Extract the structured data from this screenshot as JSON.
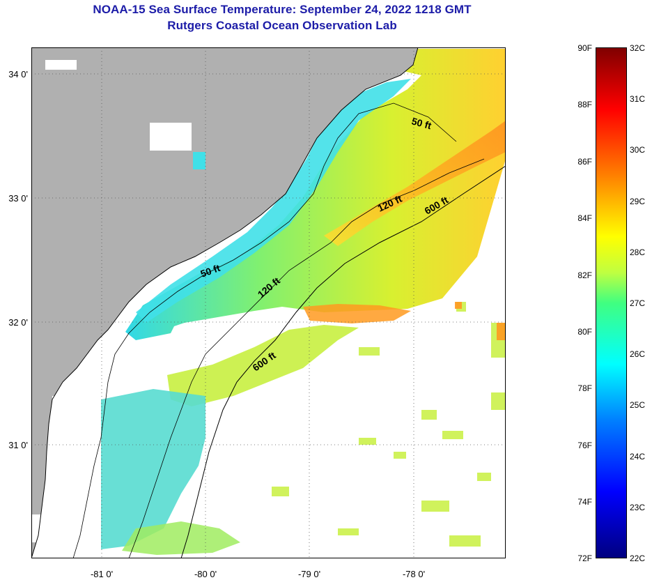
{
  "title": {
    "line1": "NOAA-15 Sea Surface Temperature:  September 24, 2022 1218 GMT",
    "line2": "Rutgers Coastal Ocean Observation Lab"
  },
  "axes": {
    "lat_labels": [
      "34 0'",
      "33 0'",
      "32 0'",
      "31 0'"
    ],
    "lon_labels": [
      "-81 0'",
      "-80 0'",
      "-79 0'",
      "-78 0'"
    ]
  },
  "contours": {
    "labels": [
      "50 ft",
      "120 ft",
      "600 ft",
      "50 ft",
      "120 ft",
      "600 ft"
    ]
  },
  "colorbar": {
    "fahrenheit": [
      "90F",
      "88F",
      "86F",
      "84F",
      "82F",
      "80F",
      "78F",
      "76F",
      "74F",
      "72F"
    ],
    "celsius": [
      "32C",
      "31C",
      "30C",
      "29C",
      "28C",
      "27C",
      "26C",
      "25C",
      "24C",
      "23C",
      "22C"
    ]
  },
  "colors": {
    "land": "#b0b0b0",
    "title": "#1c1ca8",
    "water_cool": "#3fe0d0",
    "water_mid": "#b8f040",
    "water_warm": "#ffcc20",
    "water_hot": "#ff9020"
  }
}
